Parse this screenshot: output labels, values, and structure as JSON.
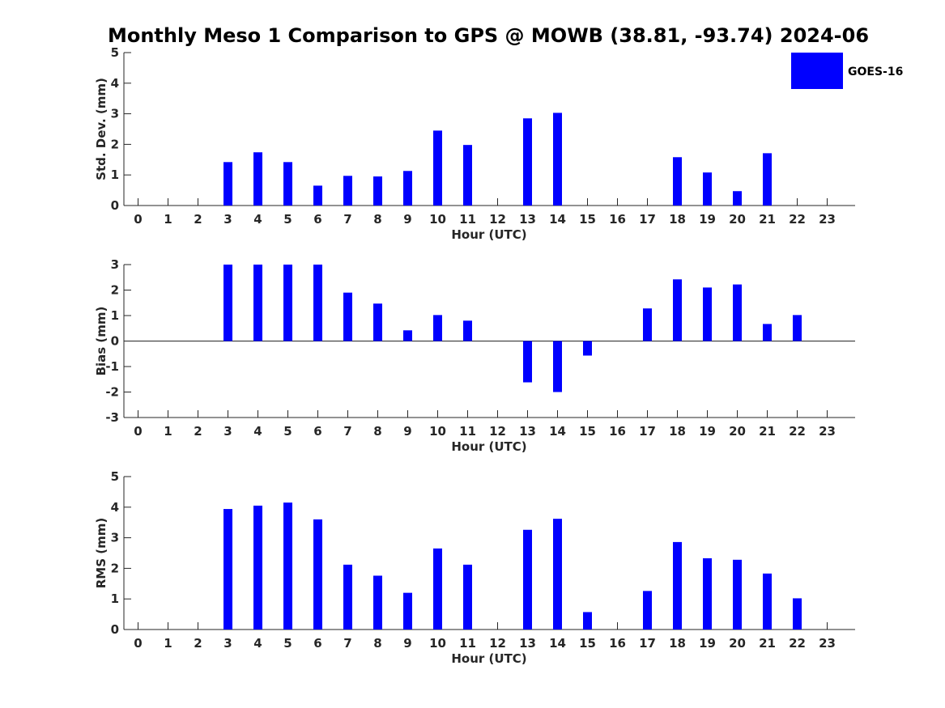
{
  "title": "Monthly Meso 1 Comparison to GPS @ MOWB (38.81, -93.74) 2024-06",
  "legend": {
    "label": "GOES-16",
    "color": "#0000ff",
    "placement": "top-right"
  },
  "chart_data": [
    {
      "type": "bar",
      "xlabel": "Hour (UTC)",
      "ylabel": "Std. Dev. (mm)",
      "ylim": [
        0,
        5
      ],
      "yticks": [
        "0",
        "1",
        "2",
        "3",
        "4",
        "5"
      ],
      "categories": [
        "0",
        "1",
        "2",
        "3",
        "4",
        "5",
        "6",
        "7",
        "8",
        "9",
        "10",
        "11",
        "12",
        "13",
        "14",
        "15",
        "16",
        "17",
        "18",
        "19",
        "20",
        "21",
        "22",
        "23"
      ],
      "series": [
        {
          "name": "GOES-16",
          "values": [
            0,
            0,
            0,
            1.42,
            1.74,
            1.42,
            0.65,
            0.97,
            0.95,
            1.13,
            2.45,
            1.98,
            0,
            2.85,
            3.03,
            0,
            0,
            0,
            1.58,
            1.08,
            0.47,
            1.71,
            0,
            0
          ]
        }
      ]
    },
    {
      "type": "bar",
      "xlabel": "Hour (UTC)",
      "ylabel": "Bias (mm)",
      "ylim": [
        -3,
        3
      ],
      "yticks": [
        "-3",
        "-2",
        "-1",
        "0",
        "1",
        "2",
        "3"
      ],
      "categories": [
        "0",
        "1",
        "2",
        "3",
        "4",
        "5",
        "6",
        "7",
        "8",
        "9",
        "10",
        "11",
        "12",
        "13",
        "14",
        "15",
        "16",
        "17",
        "18",
        "19",
        "20",
        "21",
        "22",
        "23"
      ],
      "series": [
        {
          "name": "GOES-16",
          "values": [
            0,
            0,
            0,
            3.0,
            3.0,
            3.0,
            3.0,
            1.9,
            1.47,
            0.42,
            1.02,
            0.8,
            0,
            -1.62,
            -2.0,
            -0.57,
            0,
            1.28,
            2.42,
            2.1,
            2.22,
            0.67,
            1.02,
            0
          ]
        }
      ]
    },
    {
      "type": "bar",
      "xlabel": "Hour (UTC)",
      "ylabel": "RMS (mm)",
      "ylim": [
        0,
        5
      ],
      "yticks": [
        "0",
        "1",
        "2",
        "3",
        "4",
        "5"
      ],
      "categories": [
        "0",
        "1",
        "2",
        "3",
        "4",
        "5",
        "6",
        "7",
        "8",
        "9",
        "10",
        "11",
        "12",
        "13",
        "14",
        "15",
        "16",
        "17",
        "18",
        "19",
        "20",
        "21",
        "22",
        "23"
      ],
      "series": [
        {
          "name": "GOES-16",
          "values": [
            0,
            0,
            0,
            3.94,
            4.05,
            4.15,
            3.6,
            2.12,
            1.76,
            1.2,
            2.65,
            2.12,
            0,
            3.26,
            3.62,
            0.57,
            0,
            1.26,
            2.86,
            2.33,
            2.28,
            1.83,
            1.02,
            0
          ]
        }
      ]
    }
  ]
}
